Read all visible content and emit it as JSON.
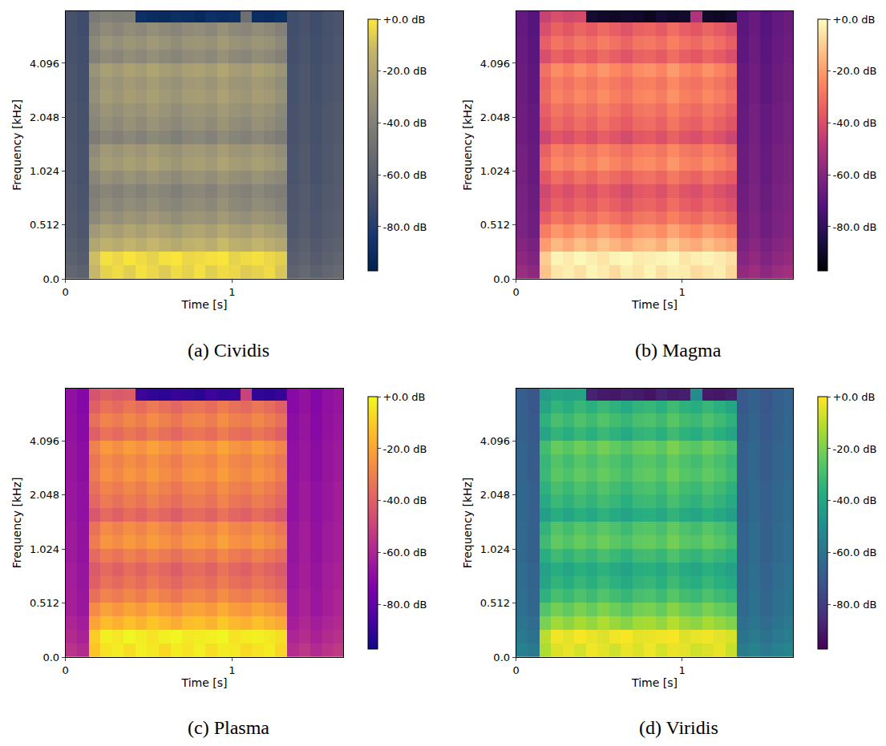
{
  "chart_data": {
    "type": "heatmap",
    "xlabel": "Time [s]",
    "ylabel": "Frequency [kHz]",
    "log": "y",
    "xlim": [
      0,
      1.67
    ],
    "xticks": [
      0,
      1
    ],
    "ylim": [
      0,
      8
    ],
    "yticks": [
      {
        "value": 0,
        "label": "0.0"
      },
      0.512,
      1.024,
      2.048,
      4.096
    ],
    "x": [
      0.035,
      0.105,
      0.175,
      0.245,
      0.315,
      0.385,
      0.455,
      0.525,
      0.595,
      0.665,
      0.735,
      0.805,
      0.875,
      0.945,
      1.015,
      1.085,
      1.155,
      1.225,
      1.295,
      1.365,
      1.435,
      1.505,
      1.575,
      1.645
    ],
    "y": [
      0.064,
      0.192,
      0.32,
      0.448,
      0.558,
      0.664,
      0.79,
      0.939,
      1.117,
      1.328,
      1.58,
      1.878,
      2.234,
      2.657,
      3.159,
      3.757,
      4.468,
      5.313,
      6.318,
      7.514
    ],
    "cells": [
      [
        -55,
        -58,
        -12,
        -5,
        -3,
        -6,
        -2,
        -4,
        -7,
        -3,
        -5,
        -2,
        -6,
        -3,
        -4,
        -7,
        -5,
        -3,
        -8,
        -57,
        -54,
        -58,
        -55,
        -53
      ],
      [
        -58,
        -61,
        -10,
        -2,
        -4,
        -1,
        -3,
        -5,
        -2,
        -1,
        -4,
        -3,
        -2,
        -1,
        -5,
        -3,
        -2,
        -4,
        -6,
        -60,
        -57,
        -61,
        -58,
        -56
      ],
      [
        -60,
        -63,
        -20,
        -14,
        -17,
        -13,
        -16,
        -12,
        -15,
        -18,
        -14,
        -13,
        -16,
        -11,
        -15,
        -17,
        -13,
        -16,
        -19,
        -62,
        -59,
        -63,
        -60,
        -58
      ],
      [
        -62,
        -65,
        -27,
        -21,
        -24,
        -20,
        -23,
        -19,
        -22,
        -25,
        -21,
        -20,
        -23,
        -18,
        -22,
        -24,
        -20,
        -23,
        -26,
        -64,
        -61,
        -65,
        -62,
        -60
      ],
      [
        -62,
        -65,
        -35,
        -29,
        -32,
        -28,
        -31,
        -27,
        -30,
        -33,
        -29,
        -28,
        -31,
        -26,
        -30,
        -32,
        -28,
        -31,
        -34,
        -64,
        -61,
        -65,
        -62,
        -60
      ],
      [
        -63,
        -66,
        -40,
        -34,
        -37,
        -33,
        -36,
        -32,
        -35,
        -38,
        -34,
        -33,
        -36,
        -31,
        -35,
        -37,
        -33,
        -36,
        -39,
        -65,
        -62,
        -66,
        -63,
        -61
      ],
      [
        -63,
        -66,
        -42,
        -37,
        -40,
        -36,
        -39,
        -35,
        -38,
        -41,
        -37,
        -36,
        -39,
        -34,
        -38,
        -40,
        -36,
        -39,
        -42,
        -65,
        -62,
        -66,
        -63,
        -61
      ],
      [
        -64,
        -67,
        -37,
        -31,
        -34,
        -30,
        -33,
        -29,
        -32,
        -35,
        -31,
        -30,
        -33,
        -28,
        -32,
        -34,
        -30,
        -33,
        -36,
        -66,
        -63,
        -67,
        -64,
        -62
      ],
      [
        -64,
        -67,
        -31,
        -24,
        -27,
        -23,
        -26,
        -22,
        -25,
        -28,
        -24,
        -23,
        -26,
        -21,
        -25,
        -27,
        -23,
        -26,
        -30,
        -66,
        -63,
        -67,
        -64,
        -62
      ],
      [
        -64,
        -67,
        -34,
        -27,
        -30,
        -26,
        -29,
        -25,
        -28,
        -31,
        -27,
        -26,
        -29,
        -24,
        -28,
        -30,
        -26,
        -29,
        -33,
        -66,
        -63,
        -67,
        -64,
        -62
      ],
      [
        -65,
        -68,
        -43,
        -37,
        -40,
        -36,
        -39,
        -35,
        -38,
        -41,
        -37,
        -36,
        -39,
        -34,
        -38,
        -40,
        -36,
        -39,
        -43,
        -67,
        -64,
        -68,
        -65,
        -63
      ],
      [
        -65,
        -68,
        -38,
        -32,
        -35,
        -31,
        -34,
        -30,
        -33,
        -36,
        -32,
        -31,
        -34,
        -29,
        -33,
        -35,
        -31,
        -34,
        -38,
        -67,
        -64,
        -68,
        -65,
        -63
      ],
      [
        -65,
        -68,
        -35,
        -29,
        -32,
        -28,
        -31,
        -27,
        -30,
        -33,
        -29,
        -28,
        -31,
        -26,
        -30,
        -32,
        -28,
        -31,
        -35,
        -67,
        -64,
        -68,
        -65,
        -63
      ],
      [
        -66,
        -69,
        -32,
        -25,
        -28,
        -24,
        -27,
        -23,
        -26,
        -29,
        -25,
        -24,
        -27,
        -22,
        -26,
        -28,
        -24,
        -27,
        -31,
        -68,
        -65,
        -69,
        -66,
        -64
      ],
      [
        -66,
        -69,
        -33,
        -27,
        -30,
        -26,
        -29,
        -25,
        -28,
        -31,
        -27,
        -26,
        -29,
        -24,
        -28,
        -30,
        -26,
        -29,
        -33,
        -68,
        -65,
        -69,
        -66,
        -64
      ],
      [
        -66,
        -69,
        -30,
        -23,
        -26,
        -22,
        -25,
        -21,
        -24,
        -27,
        -23,
        -22,
        -25,
        -20,
        -24,
        -26,
        -22,
        -25,
        -29,
        -68,
        -65,
        -69,
        -66,
        -64
      ],
      [
        -67,
        -70,
        -40,
        -34,
        -37,
        -33,
        -36,
        -32,
        -35,
        -38,
        -34,
        -33,
        -36,
        -31,
        -35,
        -37,
        -33,
        -36,
        -40,
        -69,
        -66,
        -70,
        -67,
        -65
      ],
      [
        -67,
        -70,
        -35,
        -29,
        -32,
        -28,
        -31,
        -27,
        -30,
        -33,
        -29,
        -28,
        -31,
        -26,
        -30,
        -32,
        -28,
        -31,
        -35,
        -69,
        -66,
        -70,
        -67,
        -65
      ],
      [
        -68,
        -71,
        -40,
        -34,
        -37,
        -33,
        -36,
        -32,
        -35,
        -38,
        -34,
        -33,
        -36,
        -31,
        -35,
        -37,
        -33,
        -36,
        -40,
        -70,
        -67,
        -71,
        -68,
        -66
      ],
      [
        -68,
        -71,
        -44,
        -40,
        -42,
        -41,
        -88,
        -90,
        -91,
        -89,
        -90,
        -92,
        -88,
        -90,
        -89,
        -50,
        -90,
        -91,
        -89,
        -70,
        -67,
        -71,
        -68,
        -66
      ]
    ],
    "colorbar": {
      "range": [
        -97,
        0
      ],
      "ticks": [
        {
          "value": 0,
          "label": "+0.0 dB"
        },
        {
          "value": -20,
          "label": "-20.0 dB"
        },
        {
          "value": -40,
          "label": "-40.0 dB"
        },
        {
          "value": -60,
          "label": "-60.0 dB"
        },
        {
          "value": -80,
          "label": "-80.0 dB"
        }
      ]
    },
    "panels": [
      {
        "title": "(a) Cividis",
        "color": "cividis"
      },
      {
        "title": "(b) Magma",
        "color": "magma"
      },
      {
        "title": "(c) Plasma",
        "color": "plasma"
      },
      {
        "title": "(d) Viridis",
        "color": "viridis"
      }
    ]
  }
}
